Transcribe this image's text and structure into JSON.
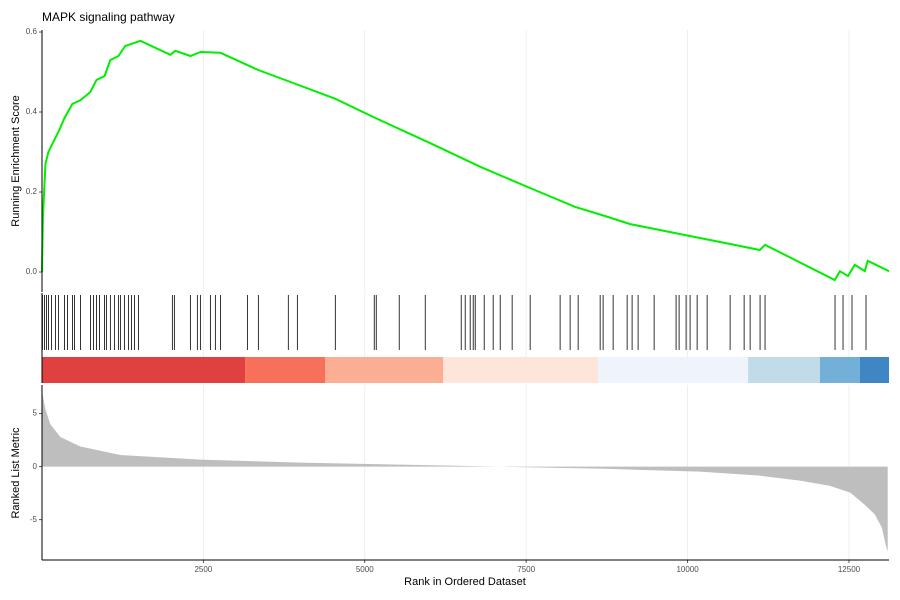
{
  "chart_data": [
    {
      "type": "line",
      "title": "MAPK signaling pathway",
      "y_label": "Running Enrichment Score",
      "color": "#00ee00",
      "x": [
        1,
        15,
        54,
        100,
        160,
        255,
        350,
        470,
        600,
        750,
        845,
        970,
        1060,
        1185,
        1290,
        1525,
        1990,
        2065,
        2300,
        2455,
        2765,
        3350,
        3850,
        4545,
        5165,
        6015,
        6790,
        7560,
        8255,
        8720,
        9105,
        9570,
        10035,
        10660,
        11120,
        11200,
        12280,
        12360,
        12485,
        12590,
        12745,
        12790,
        13120
      ],
      "values": [
        0,
        0.135,
        0.27,
        0.3,
        0.32,
        0.35,
        0.385,
        0.42,
        0.43,
        0.45,
        0.48,
        0.49,
        0.53,
        0.54,
        0.565,
        0.578,
        0.543,
        0.553,
        0.54,
        0.55,
        0.548,
        0.505,
        0.475,
        0.433,
        0.385,
        0.322,
        0.263,
        0.21,
        0.163,
        0.14,
        0.12,
        0.105,
        0.09,
        0.07,
        0.055,
        0.068,
        -0.02,
        0.002,
        -0.01,
        0.018,
        0.002,
        0.028,
        0.002
      ],
      "xlim": [
        1,
        13120
      ],
      "ylim": [
        -0.05,
        0.605
      ],
      "yticks": [
        {
          "value": 0,
          "label": "0.0"
        },
        {
          "value": 0.2,
          "label": "0.2"
        },
        {
          "value": 0.4,
          "label": "0.4"
        },
        {
          "value": 0.6,
          "label": "0.6"
        }
      ],
      "grid": true
    },
    {
      "type": "rug",
      "xlim": [
        1,
        13120
      ],
      "x": [
        8,
        39,
        70,
        101,
        147,
        209,
        255,
        348,
        395,
        472,
        503,
        596,
        751,
        797,
        844,
        890,
        968,
        998,
        1060,
        1122,
        1184,
        1215,
        1277,
        1339,
        1386,
        1432,
        1494,
        2020,
        2051,
        2299,
        2407,
        2454,
        2609,
        2686,
        2764,
        3182,
        3352,
        3816,
        3956,
        4544,
        5147,
        5178,
        5534,
        5937,
        6494,
        6556,
        6633,
        6680,
        6711,
        6850,
        6989,
        7098,
        7283,
        7562,
        8026,
        8181,
        8305,
        8646,
        8692,
        8847,
        9064,
        9141,
        9234,
        9482,
        9822,
        9869,
        9977,
        10039,
        10148,
        10303,
        10659,
        10876,
        10969,
        11123,
        11200,
        12284,
        12408,
        12547,
        12764
      ],
      "bands": [
        {
          "start": 1,
          "end": 3150,
          "color": "#e04040"
        },
        {
          "start": 3150,
          "end": 4389,
          "color": "#f6705a"
        },
        {
          "start": 4389,
          "end": 6216,
          "color": "#fcae94"
        },
        {
          "start": 6216,
          "end": 8615,
          "color": "#fee5d9"
        },
        {
          "start": 8615,
          "end": 10937,
          "color": "#eef3fc"
        },
        {
          "start": 10937,
          "end": 12051,
          "color": "#c2dbe9"
        },
        {
          "start": 12051,
          "end": 12670,
          "color": "#72b0d8"
        },
        {
          "start": 12670,
          "end": 13120,
          "color": "#3e87c4"
        }
      ]
    },
    {
      "type": "area",
      "x_label": "Rank in Ordered Dataset",
      "y_label": "Ranked List Metric",
      "color": "#bebebe",
      "x": [
        1,
        54,
        130,
        285,
        595,
        1215,
        2455,
        4000,
        5550,
        7100,
        8640,
        10190,
        11120,
        11740,
        12200,
        12520,
        12745,
        12900,
        13010,
        13070,
        13100
      ],
      "values": [
        7.1,
        5.4,
        4.0,
        2.8,
        1.9,
        1.1,
        0.66,
        0.38,
        0.19,
        0,
        -0.19,
        -0.47,
        -0.85,
        -1.32,
        -1.8,
        -2.45,
        -3.6,
        -4.5,
        -5.75,
        -7.4,
        -8.0
      ],
      "xlim": [
        1,
        13120
      ],
      "ylim": [
        -8.8,
        7.7
      ],
      "yticks": [
        -5,
        0,
        5
      ],
      "xticks": [
        2500,
        5000,
        7500,
        10000,
        12500
      ],
      "grid": true
    }
  ]
}
